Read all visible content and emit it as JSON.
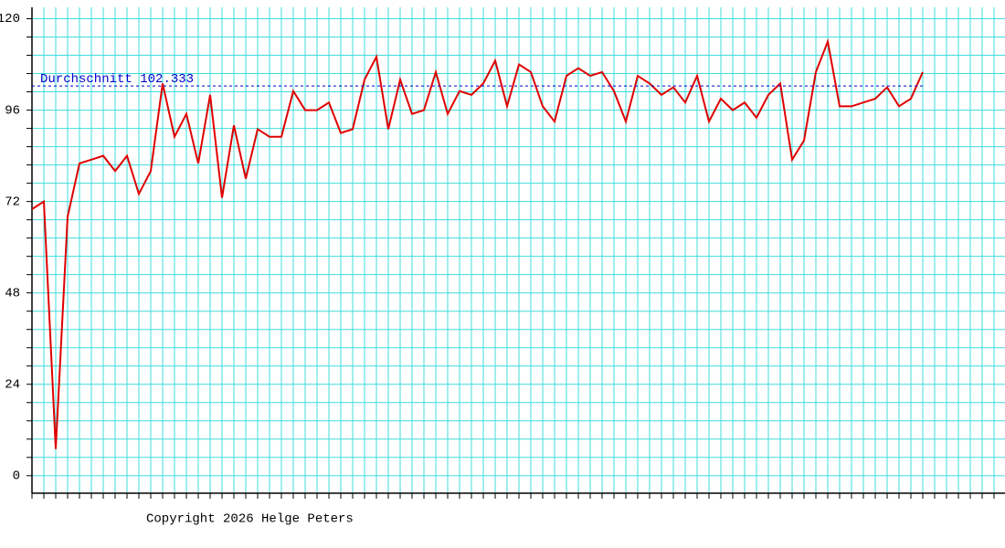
{
  "chart_data": {
    "type": "line",
    "categories": [
      null,
      null,
      null,
      null,
      null,
      null,
      null,
      null,
      null,
      null,
      null,
      null,
      null,
      null,
      null,
      null,
      null,
      null,
      null,
      null,
      null,
      null,
      null,
      null,
      null,
      null,
      null,
      null,
      null,
      null,
      null,
      null,
      null,
      null,
      null,
      null,
      null,
      null,
      null,
      null,
      null,
      null,
      null,
      null,
      null,
      null,
      null,
      null,
      null,
      null,
      null,
      null,
      null,
      null,
      null,
      null,
      null,
      null,
      null,
      null,
      null,
      null,
      null,
      null,
      null,
      null,
      null,
      null,
      null,
      null,
      null,
      null,
      null,
      null,
      null,
      null,
      null,
      null,
      null,
      null,
      null,
      null
    ],
    "series": [
      {
        "color": "#e00000",
        "values": [
          70,
          72,
          7,
          68,
          82,
          83,
          84,
          80,
          84,
          74,
          80,
          103,
          89,
          95,
          82,
          100,
          73,
          92,
          78,
          91,
          89,
          89,
          101,
          96,
          96,
          98,
          90,
          91,
          104,
          110,
          91,
          104,
          95,
          96,
          106,
          95,
          101,
          100,
          103,
          109,
          97,
          108,
          106,
          97,
          93,
          105,
          107,
          105,
          106,
          101,
          93,
          105,
          103,
          100,
          102,
          98,
          105,
          93,
          99,
          96,
          98,
          94,
          100,
          103,
          83,
          88,
          106,
          114,
          97,
          97,
          98,
          99,
          102,
          97,
          99,
          106,
          null,
          null,
          null,
          null,
          null,
          null
        ]
      }
    ],
    "average": {
      "label": "Durchschnitt",
      "value": 102.333,
      "color": "#0000cc"
    },
    "ylim": [
      -4.6,
      123
    ],
    "yticks": [
      0,
      24,
      48,
      72,
      96,
      120
    ],
    "minor_yticks": [
      0,
      4.8,
      9.6,
      14.4,
      19.2,
      24,
      28.8,
      33.6,
      38.4,
      43.2,
      48,
      52.8,
      57.6,
      62.4,
      67.2,
      72,
      76.8,
      81.6,
      86.4,
      91.2,
      96,
      100.8,
      105.6,
      110.4,
      115.2,
      120
    ],
    "grid": true,
    "grid_color": "#40dcdc",
    "credit": "Copyright 2026 Helge Peters"
  }
}
